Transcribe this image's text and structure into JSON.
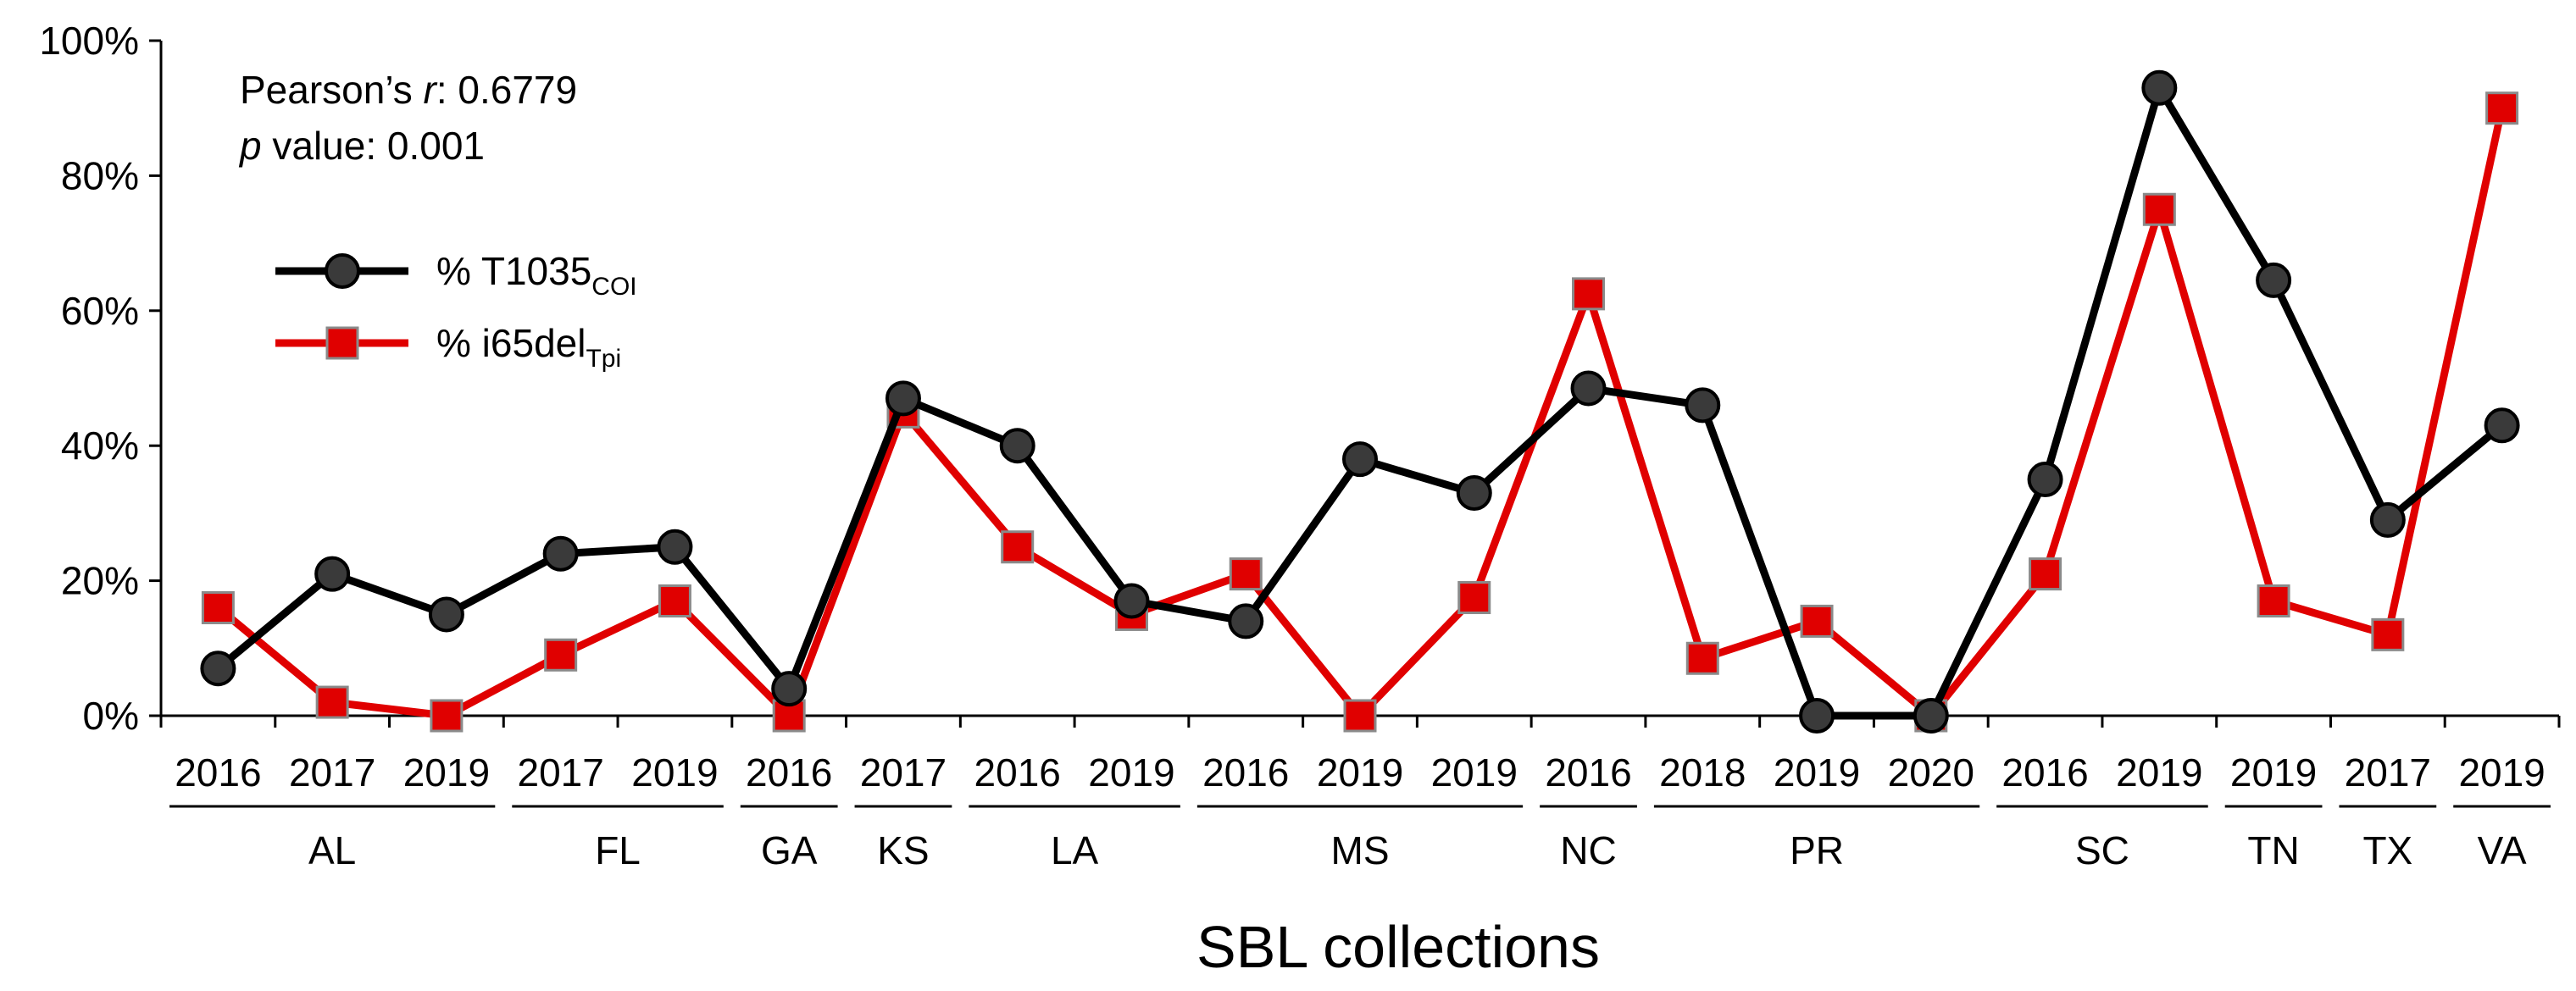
{
  "chart_data": {
    "type": "line",
    "xlabel": "SBL collections",
    "ylabel": "",
    "ylim": [
      0,
      100
    ],
    "yticks": [
      "0%",
      "20%",
      "40%",
      "60%",
      "80%",
      "100%"
    ],
    "categories": [
      {
        "state": "AL",
        "year": "2016"
      },
      {
        "state": "AL",
        "year": "2017"
      },
      {
        "state": "AL",
        "year": "2019"
      },
      {
        "state": "FL",
        "year": "2017"
      },
      {
        "state": "FL",
        "year": "2019"
      },
      {
        "state": "GA",
        "year": "2016"
      },
      {
        "state": "KS",
        "year": "2017"
      },
      {
        "state": "LA",
        "year": "2016"
      },
      {
        "state": "LA",
        "year": "2019"
      },
      {
        "state": "MS",
        "year": "2016"
      },
      {
        "state": "MS",
        "year": "2019"
      },
      {
        "state": "MS",
        "year": "2019"
      },
      {
        "state": "NC",
        "year": "2016"
      },
      {
        "state": "PR",
        "year": "2018"
      },
      {
        "state": "PR",
        "year": "2019"
      },
      {
        "state": "PR",
        "year": "2020"
      },
      {
        "state": "SC",
        "year": "2016"
      },
      {
        "state": "SC",
        "year": "2019"
      },
      {
        "state": "TN",
        "year": "2019"
      },
      {
        "state": "TX",
        "year": "2017"
      },
      {
        "state": "VA",
        "year": "2019"
      }
    ],
    "groups": [
      "AL",
      "FL",
      "GA",
      "KS",
      "LA",
      "MS",
      "NC",
      "PR",
      "SC",
      "TN",
      "TX",
      "VA"
    ],
    "series": [
      {
        "name": "% T1035",
        "name_sub": "COI",
        "color": "#000000",
        "marker": "circle",
        "marker_fill": "#3a3a3a",
        "values": [
          7,
          21,
          15,
          24,
          25,
          4,
          47,
          40,
          17,
          14,
          38,
          33,
          48.5,
          46,
          0,
          0,
          35,
          93,
          64.5,
          29,
          43
        ]
      },
      {
        "name": "% i65del",
        "name_sub": "Tpi",
        "color": "#e00000",
        "marker": "square",
        "marker_fill": "#e00000",
        "values": [
          16,
          2,
          0,
          9,
          17,
          0,
          45,
          25,
          15,
          21,
          0,
          17.5,
          62.5,
          8.5,
          14,
          0,
          21,
          75,
          17,
          12,
          90
        ]
      }
    ],
    "annotation": {
      "line1_prefix": "Pearson’s ",
      "line1_italic": "r",
      "line1_suffix": ": 0.6779",
      "line2_italic": "p",
      "line2_suffix": " value: 0.001"
    },
    "legend_position": "upper-left"
  }
}
